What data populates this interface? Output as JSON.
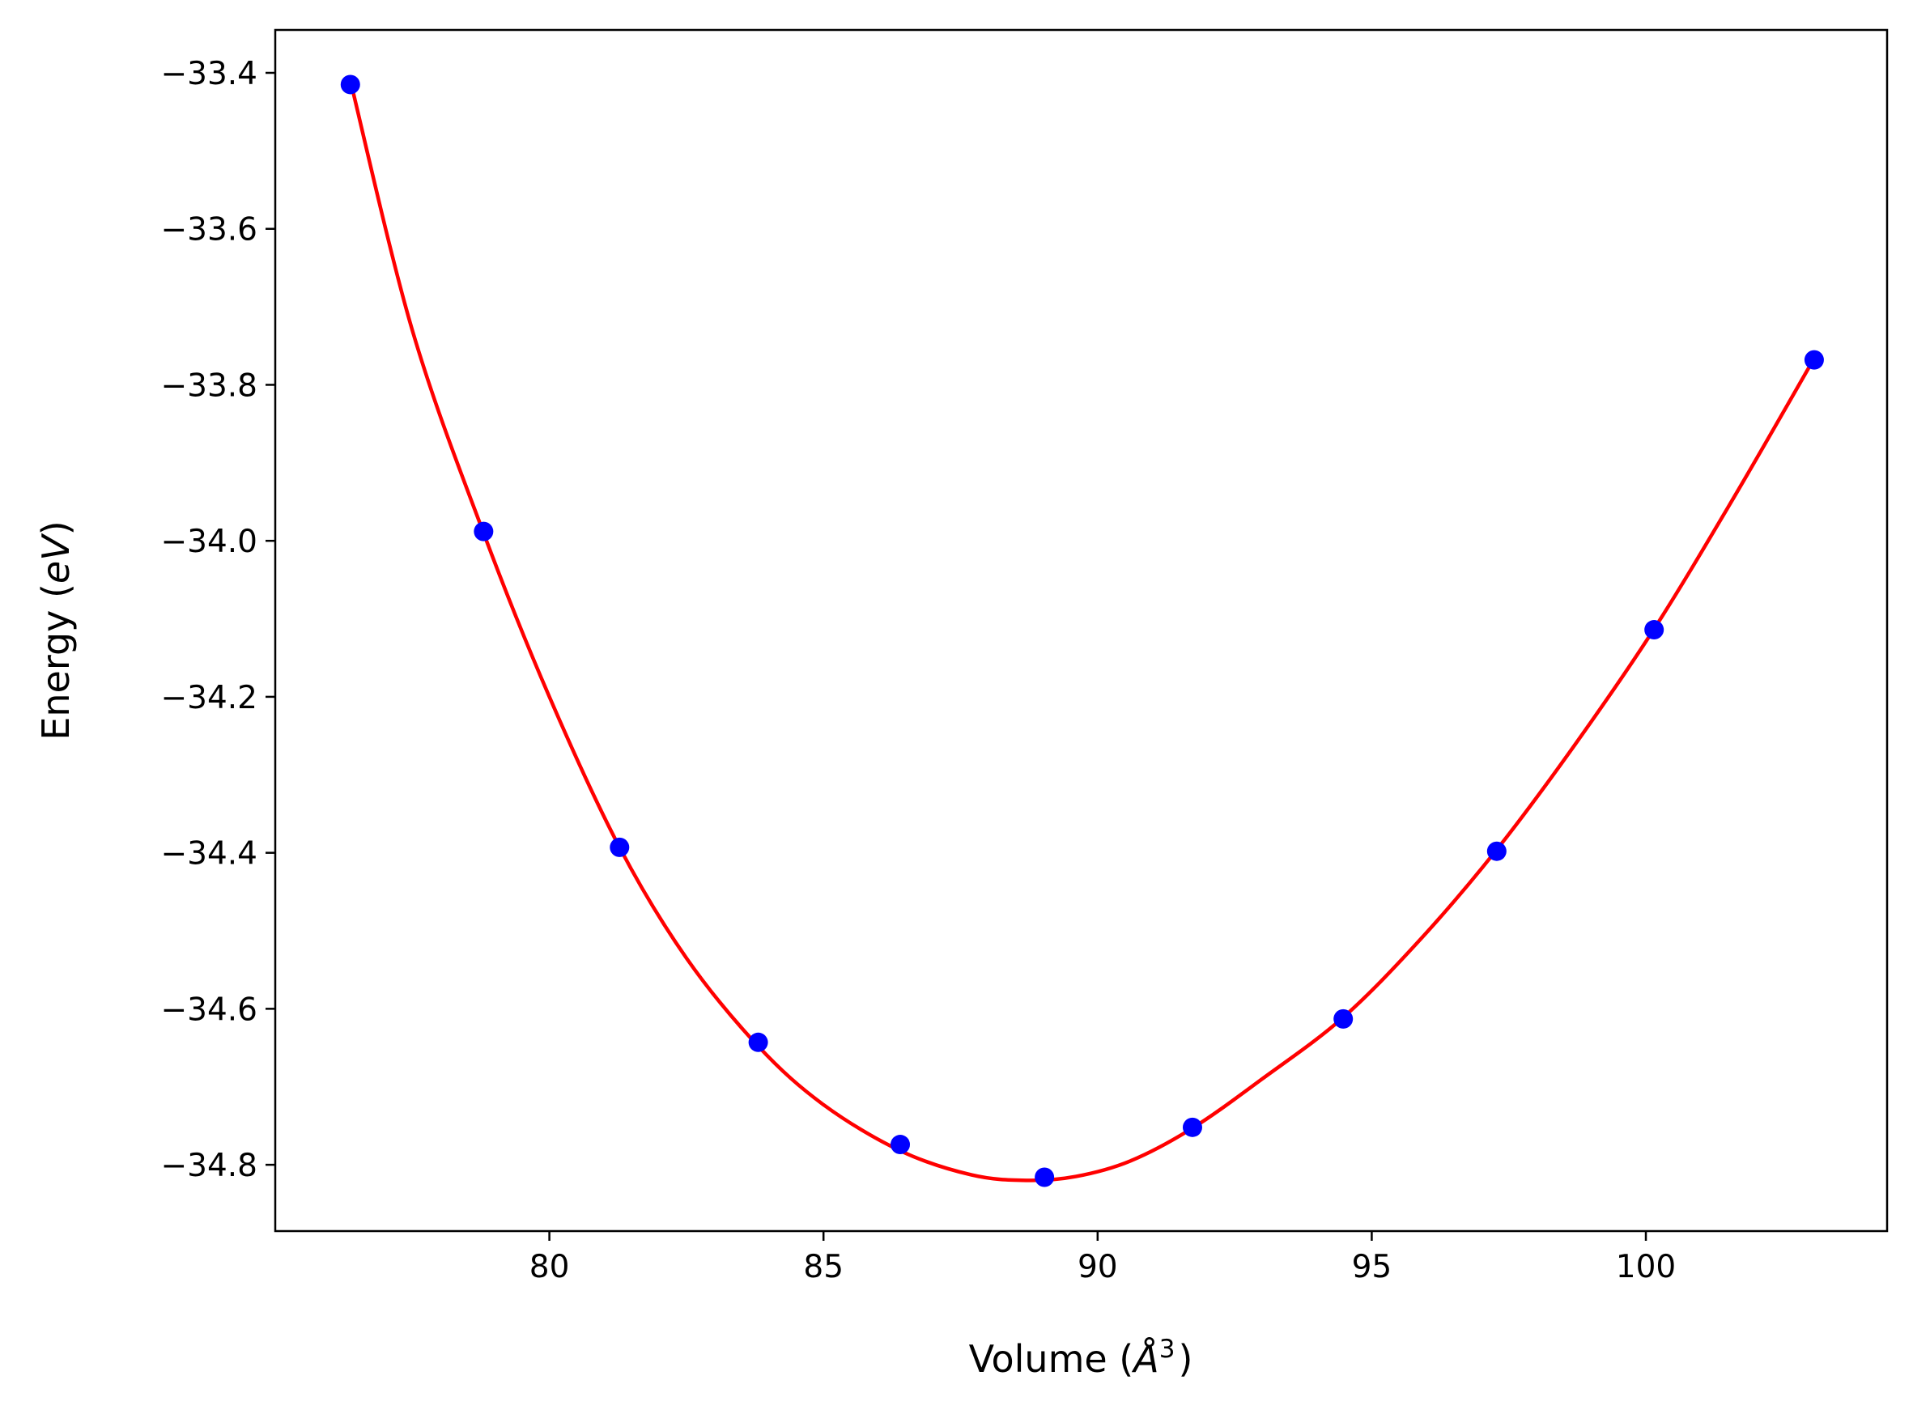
{
  "chart_data": {
    "type": "scatter",
    "title": "",
    "xlabel": {
      "prefix": "Volume (",
      "symbol": "Å",
      "superscript": "3",
      "suffix": ")"
    },
    "ylabel": {
      "prefix": "Energy (",
      "unit": "eV",
      "suffix": ")"
    },
    "xlim": [
      75.0,
      104.4
    ],
    "ylim": [
      -34.885,
      -33.345
    ],
    "xticks": [
      80,
      85,
      90,
      95,
      100
    ],
    "yticks": [
      -33.4,
      -33.6,
      -33.8,
      -34.0,
      -34.2,
      -34.4,
      -34.6,
      -34.8
    ],
    "xtick_labels": [
      "80",
      "85",
      "90",
      "95",
      "100"
    ],
    "ytick_labels": [
      "−33.4",
      "−33.6",
      "−33.8",
      "−34.0",
      "−34.2",
      "−34.4",
      "−34.6",
      "−34.8"
    ],
    "grid": false,
    "series": [
      {
        "name": "data",
        "kind": "points",
        "color": "#0000ff",
        "x": [
          76.37,
          78.8,
          81.28,
          83.81,
          86.4,
          89.03,
          91.73,
          94.48,
          97.28,
          100.15,
          103.07
        ],
        "y": [
          -33.415,
          -33.988,
          -34.393,
          -34.643,
          -34.774,
          -34.816,
          -34.752,
          -34.613,
          -34.398,
          -34.114,
          -33.768
        ]
      },
      {
        "name": "fit",
        "kind": "line",
        "color": "#ff0000",
        "x": [
          76.37,
          77.5,
          78.8,
          80.0,
          81.28,
          82.5,
          83.81,
          85.0,
          86.4,
          87.7,
          88.7,
          89.6,
          90.6,
          91.73,
          93.0,
          94.48,
          95.9,
          97.28,
          98.7,
          100.15,
          101.6,
          103.07
        ],
        "y": [
          -33.41,
          -33.73,
          -33.99,
          -34.2,
          -34.393,
          -34.535,
          -34.648,
          -34.723,
          -34.782,
          -34.813,
          -34.82,
          -34.815,
          -34.795,
          -34.753,
          -34.69,
          -34.611,
          -34.51,
          -34.396,
          -34.262,
          -34.113,
          -33.945,
          -33.766
        ]
      }
    ]
  }
}
